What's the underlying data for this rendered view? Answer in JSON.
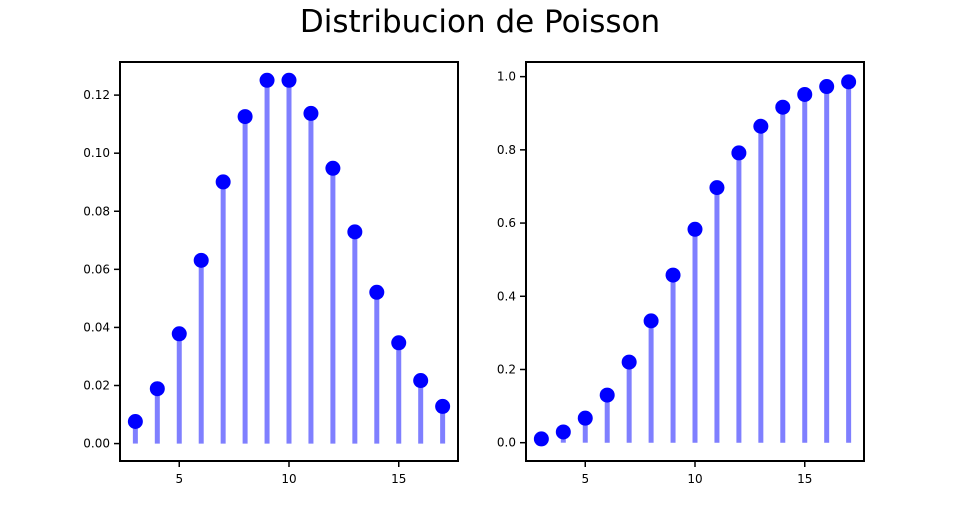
{
  "figure": {
    "title": "Distribucion de Poisson"
  },
  "colors": {
    "stem": "#7f7fff",
    "marker": "#0000ff",
    "axis": "#000000"
  },
  "chart_data": [
    {
      "type": "stem",
      "title": "",
      "xlabel": "",
      "ylabel": "",
      "x": [
        3,
        4,
        5,
        6,
        7,
        8,
        9,
        10,
        11,
        12,
        13,
        14,
        15,
        16,
        17
      ],
      "values": [
        0.0076,
        0.0189,
        0.0378,
        0.0631,
        0.0901,
        0.1126,
        0.1251,
        0.1251,
        0.1137,
        0.0948,
        0.0729,
        0.0521,
        0.0347,
        0.0217,
        0.0128
      ],
      "xlim": [
        2.3,
        17.7
      ],
      "ylim": [
        -0.006,
        0.1314
      ],
      "xticks": [
        5,
        10,
        15
      ],
      "yticks": [
        0.0,
        0.02,
        0.04,
        0.06,
        0.08,
        0.1,
        0.12
      ],
      "ytick_labels": [
        "0.00",
        "0.02",
        "0.04",
        "0.06",
        "0.08",
        "0.10",
        "0.12"
      ],
      "grid": false
    },
    {
      "type": "stem",
      "title": "",
      "xlabel": "",
      "ylabel": "",
      "x": [
        3,
        4,
        5,
        6,
        7,
        8,
        9,
        10,
        11,
        12,
        13,
        14,
        15,
        16,
        17
      ],
      "values": [
        0.0103,
        0.0293,
        0.0671,
        0.1301,
        0.2202,
        0.3328,
        0.4579,
        0.583,
        0.6968,
        0.7916,
        0.8645,
        0.9165,
        0.9513,
        0.973,
        0.9857
      ],
      "xlim": [
        2.3,
        17.7
      ],
      "ylim": [
        -0.05,
        1.04
      ],
      "xticks": [
        5,
        10,
        15
      ],
      "yticks": [
        0.0,
        0.2,
        0.4,
        0.6,
        0.8,
        1.0
      ],
      "ytick_labels": [
        "0.0",
        "0.2",
        "0.4",
        "0.6",
        "0.8",
        "1.0"
      ],
      "grid": false
    }
  ]
}
